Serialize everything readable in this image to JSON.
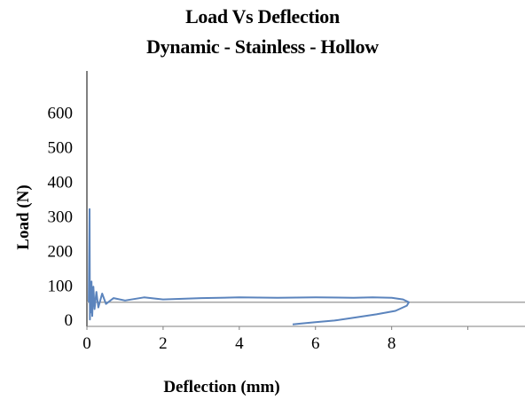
{
  "chart_data": {
    "type": "line",
    "title": "Load Vs Deflection",
    "subtitle": "Dynamic - Stainless - Hollow",
    "xlabel": "Deflection (mm)",
    "ylabel": "Load (N)",
    "xlim": [
      0,
      11.5
    ],
    "ylim": [
      -20,
      720
    ],
    "x_ticks": [
      0,
      2,
      4,
      6,
      8
    ],
    "y_ticks": [
      0,
      100,
      200,
      300,
      400,
      500,
      600
    ],
    "baseline_y": 50,
    "grid": false,
    "legend": "none",
    "colors": {
      "series": "#5b84bd",
      "baseline": "#a6a6a6",
      "axis": "#000000"
    },
    "series": [
      {
        "x": [
          0.05,
          0.07,
          0.08,
          0.09,
          0.1,
          0.12,
          0.14,
          0.17,
          0.2,
          0.25,
          0.3,
          0.4,
          0.5,
          0.7,
          1.0,
          1.5,
          2.0,
          3.0,
          4.0,
          5.0,
          6.0,
          7.0,
          7.5,
          8.0,
          8.3,
          8.45,
          8.4,
          8.1,
          7.6,
          7.0,
          6.5,
          6.0,
          5.6,
          5.4
        ],
        "y": [
          50,
          320,
          0,
          90,
          20,
          110,
          10,
          95,
          30,
          80,
          35,
          75,
          45,
          62,
          55,
          64,
          58,
          62,
          64,
          63,
          64,
          63,
          64,
          63,
          58,
          50,
          40,
          25,
          15,
          5,
          -3,
          -8,
          -12,
          -14
        ]
      }
    ]
  }
}
